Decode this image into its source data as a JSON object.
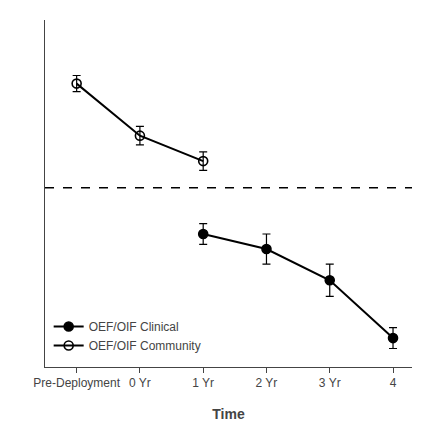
{
  "chart_data": {
    "type": "line",
    "xlabel": "Time",
    "series": [
      {
        "name": "OEF/OIF Community",
        "color": "#000000",
        "marker": "circle-open",
        "line_style": "solid",
        "x": [
          -1,
          0,
          1
        ],
        "values": [
          59.5,
          55.0,
          52.8
        ],
        "errors": [
          0.7,
          0.8,
          0.8
        ]
      },
      {
        "name": "OEF/OIF Clinical",
        "color": "#000000",
        "marker": "circle",
        "line_style": "solid",
        "x": [
          1,
          2,
          3,
          4
        ],
        "values": [
          46.5,
          45.2,
          42.5,
          37.5
        ],
        "errors": [
          0.9,
          1.3,
          1.4,
          0.9
        ]
      }
    ],
    "hline": 50.5,
    "xlim": [
      -1.5,
      4.3
    ],
    "xticks": [
      {
        "value": -1,
        "label": "Pre-Deployment"
      },
      {
        "value": 0,
        "label": "0 Yr"
      },
      {
        "value": 1,
        "label": "1 Yr"
      },
      {
        "value": 2,
        "label": "2 Yr"
      },
      {
        "value": 3,
        "label": "3 Yr"
      },
      4
    ],
    "ylim": [
      35,
      65
    ],
    "tick_labels": "x",
    "grid": false,
    "legend": "lower left"
  }
}
